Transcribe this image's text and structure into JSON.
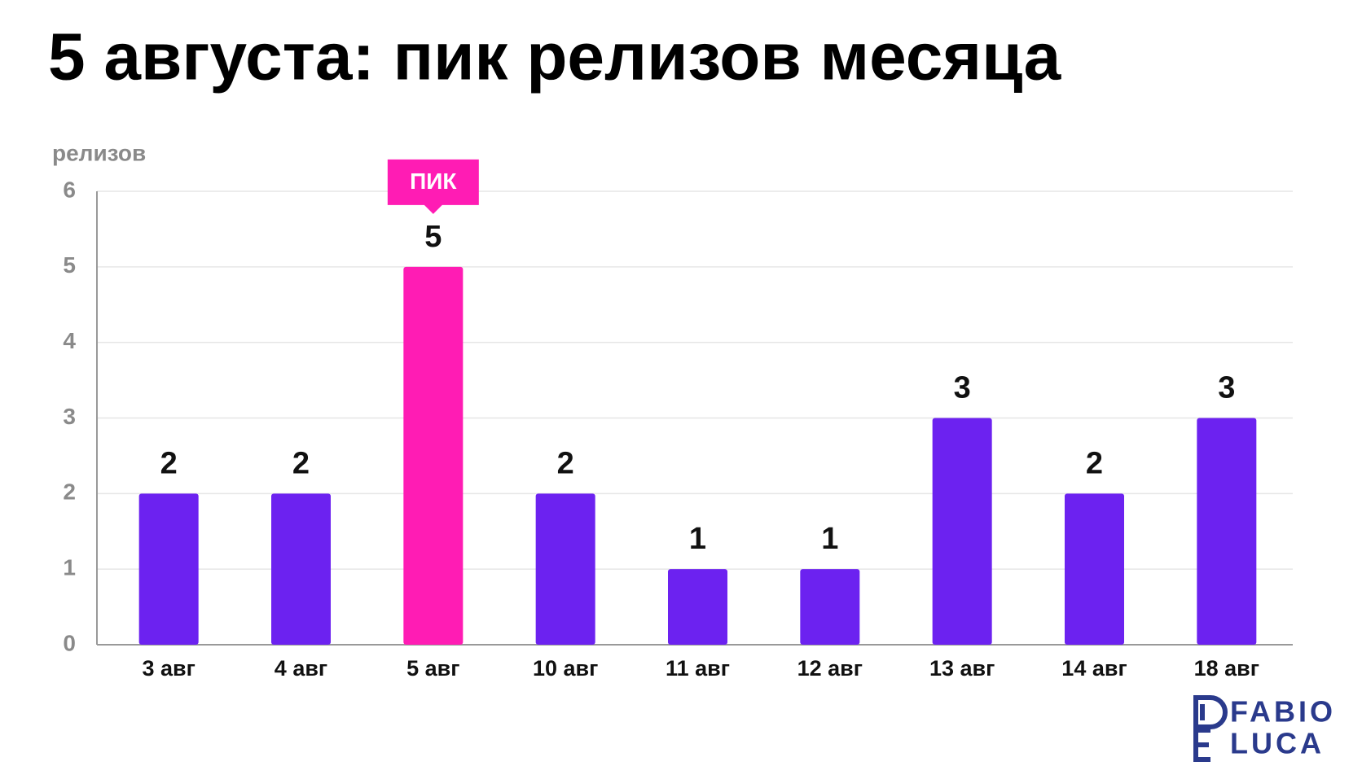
{
  "chart_data": {
    "type": "bar",
    "title": "5 августа: пик релизов месяца",
    "y_label": "релизов",
    "categories": [
      "3 авг",
      "4 авг",
      "5 авг",
      "10 авг",
      "11 авг",
      "12 авг",
      "13 авг",
      "14 авг",
      "18 авг"
    ],
    "values": [
      2,
      2,
      5,
      2,
      1,
      1,
      3,
      2,
      3
    ],
    "colors": [
      "#6c22f0",
      "#6c22f0",
      "#ff1cb4",
      "#6c22f0",
      "#6c22f0",
      "#6c22f0",
      "#6c22f0",
      "#6c22f0",
      "#6c22f0"
    ],
    "ylim": [
      0,
      6
    ],
    "yticks": [
      0,
      1,
      2,
      3,
      4,
      5,
      6
    ],
    "grid": true,
    "annotation": {
      "text": "ПИК",
      "category": "5 авг",
      "color": "#ff1cb4"
    },
    "logo": [
      "FABIO",
      "LUCA"
    ]
  }
}
